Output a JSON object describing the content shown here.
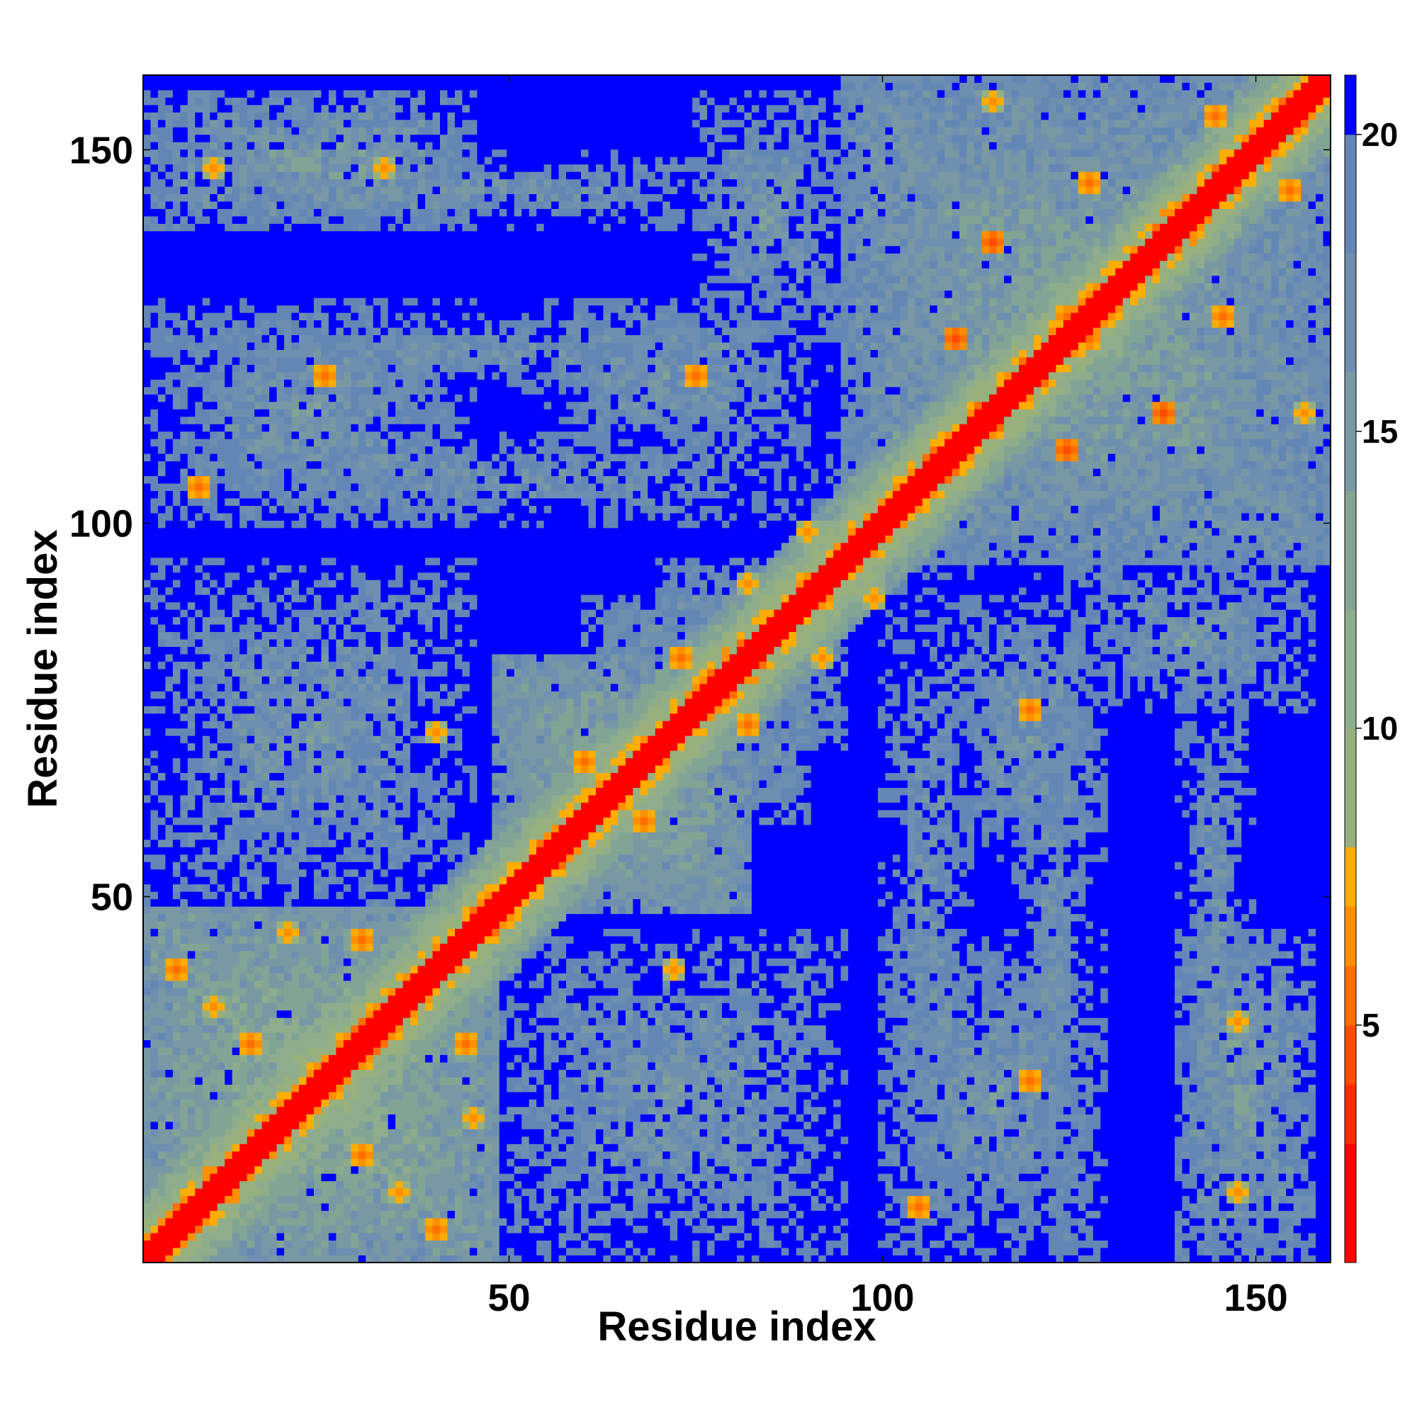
{
  "chart_data": {
    "type": "heatmap",
    "title": "",
    "xlabel": "Residue index",
    "ylabel": "Residue index",
    "xlim": [
      1,
      160
    ],
    "ylim": [
      1,
      160
    ],
    "x_ticks": [
      50,
      100,
      150
    ],
    "y_ticks": [
      50,
      100,
      150
    ],
    "x_tick_labels": [
      "50",
      "100",
      "150"
    ],
    "y_tick_labels": [
      "50",
      "100",
      "150"
    ],
    "n_residues": 160,
    "colorbar": {
      "range": [
        1,
        21
      ],
      "ticks": [
        5,
        10,
        15,
        20
      ],
      "tick_labels": [
        "5",
        "10",
        "15",
        "20"
      ],
      "levels": [
        {
          "upto": 3,
          "color": "#ff0000"
        },
        {
          "upto": 4,
          "color": "#ff2a00"
        },
        {
          "upto": 5,
          "color": "#ff4c00"
        },
        {
          "upto": 6,
          "color": "#ff6e00"
        },
        {
          "upto": 7,
          "color": "#ff8f00"
        },
        {
          "upto": 8,
          "color": "#ffad00"
        },
        {
          "upto": 10,
          "color": "#98b07e"
        },
        {
          "upto": 12,
          "color": "#8fad8c"
        },
        {
          "upto": 14,
          "color": "#82a494"
        },
        {
          "upto": 16,
          "color": "#7899a3"
        },
        {
          "upto": 18,
          "color": "#6f8fb0"
        },
        {
          "upto": 20,
          "color": "#6386b5"
        },
        {
          "upto": 21.1,
          "color": "#0000ff"
        }
      ]
    },
    "value_description": "Distance map values (colorbar scale); cells beyond 20 saturate blue",
    "diagonal_band": {
      "value": 1,
      "halfwidth": 2
    },
    "contact_blocks": [
      {
        "i": [
          1,
          48
        ],
        "j": [
          1,
          48
        ],
        "value": 12
      },
      {
        "i": [
          48,
          82
        ],
        "j": [
          48,
          82
        ],
        "value": 13
      },
      {
        "i": [
          1,
          45
        ],
        "j": [
          48,
          95
        ],
        "value": 16
      },
      {
        "i": [
          95,
          160
        ],
        "j": [
          95,
          160
        ],
        "value": 14
      },
      {
        "i": [
          1,
          45
        ],
        "j": [
          140,
          158
        ],
        "value": 15
      },
      {
        "i": [
          1,
          45
        ],
        "j": [
          100,
          130
        ],
        "value": 16
      },
      {
        "i": [
          55,
          90
        ],
        "j": [
          110,
          130
        ],
        "value": 16
      },
      {
        "i": [
          75,
          95
        ],
        "j": [
          125,
          158
        ],
        "value": 16
      },
      {
        "i": [
          100,
          112
        ],
        "j": [
          1,
          95
        ],
        "value": 17
      },
      {
        "i": [
          118,
          128
        ],
        "j": [
          1,
          95
        ],
        "value": 17
      },
      {
        "i": [
          140,
          150
        ],
        "j": [
          1,
          95
        ],
        "value": 17
      },
      {
        "i": [
          70,
          90
        ],
        "j": [
          60,
          95
        ],
        "value": 15
      },
      {
        "i": [
          140,
          150
        ],
        "j": [
          140,
          150
        ],
        "value": 12
      }
    ],
    "close_contacts": [
      {
        "i": 5,
        "j": 40,
        "value": 6
      },
      {
        "i": 10,
        "j": 35,
        "value": 7
      },
      {
        "i": 15,
        "j": 30,
        "value": 6
      },
      {
        "i": 20,
        "j": 45,
        "value": 7
      },
      {
        "i": 30,
        "j": 44,
        "value": 6
      },
      {
        "i": 8,
        "j": 105,
        "value": 6
      },
      {
        "i": 25,
        "j": 120,
        "value": 6
      },
      {
        "i": 10,
        "j": 148,
        "value": 7
      },
      {
        "i": 33,
        "j": 148,
        "value": 7
      },
      {
        "i": 75,
        "j": 120,
        "value": 6
      },
      {
        "i": 73,
        "j": 82,
        "value": 6
      },
      {
        "i": 110,
        "j": 125,
        "value": 5
      },
      {
        "i": 115,
        "j": 138,
        "value": 5
      },
      {
        "i": 125,
        "j": 128,
        "value": 6
      },
      {
        "i": 128,
        "j": 146,
        "value": 6
      },
      {
        "i": 145,
        "j": 155,
        "value": 6
      },
      {
        "i": 115,
        "j": 157,
        "value": 7
      },
      {
        "i": 40,
        "j": 72,
        "value": 7
      },
      {
        "i": 60,
        "j": 68,
        "value": 6
      },
      {
        "i": 82,
        "j": 92,
        "value": 7
      },
      {
        "i": 90,
        "j": 99,
        "value": 7
      }
    ]
  }
}
